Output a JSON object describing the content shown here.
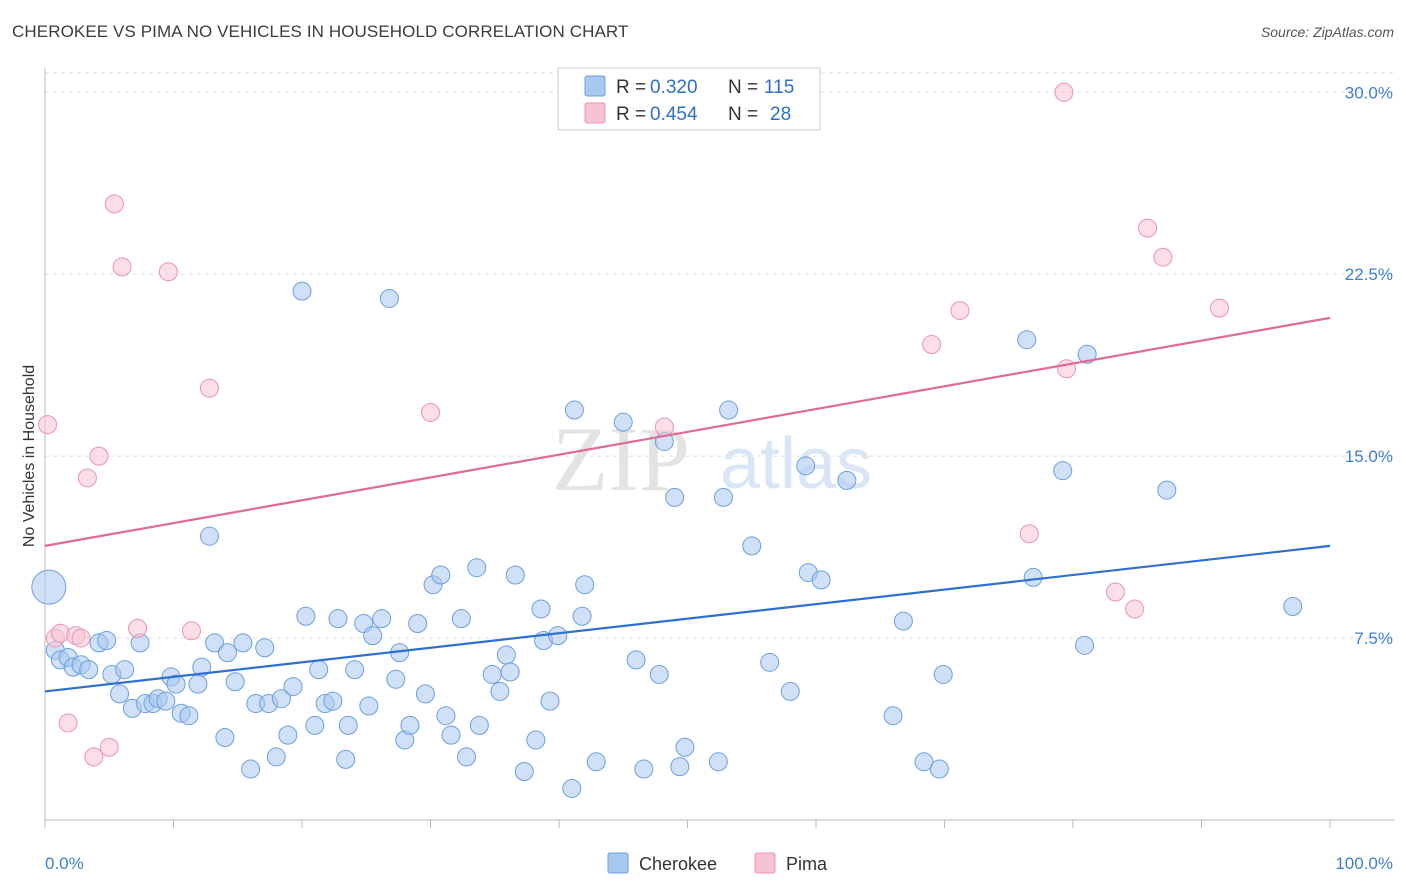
{
  "title": "CHEROKEE VS PIMA NO VEHICLES IN HOUSEHOLD CORRELATION CHART",
  "source": "Source: ZipAtlas.com",
  "watermark": {
    "zip": "ZIP",
    "atlas": "atlas"
  },
  "colors": {
    "cherokee_fill": "#a9c8f0",
    "cherokee_stroke": "#6a9fe0",
    "cherokee_line": "#2e6fd0",
    "pima_fill": "#f7c3d2",
    "pima_stroke": "#ec93ae",
    "pima_line": "#e06a92",
    "tick_label": "#3f7fd0",
    "grid": "#dddddd"
  },
  "legend": {
    "rows": [
      {
        "r_label": "R =",
        "r_value": "0.320",
        "n_label": "N =",
        "n_value": "115"
      },
      {
        "r_label": "R =",
        "r_value": "0.454",
        "n_label": "N =",
        "n_value": "28"
      }
    ]
  },
  "bottom_legend": [
    "Cherokee",
    "Pima"
  ],
  "chart_data": {
    "type": "scatter",
    "title": "CHEROKEE VS PIMA NO VEHICLES IN HOUSEHOLD CORRELATION CHART",
    "xlabel": "",
    "ylabel": "No Vehicles in Household",
    "xlim": [
      0,
      100
    ],
    "ylim": [
      0,
      31
    ],
    "x_tick_labels": [
      "0.0%",
      "100.0%"
    ],
    "y_ticks": [
      7.5,
      15.0,
      22.5,
      30.0
    ],
    "y_tick_labels": [
      "7.5%",
      "15.0%",
      "22.5%",
      "30.0%"
    ],
    "grid": true,
    "legend_position": "top-center",
    "series": [
      {
        "name": "Cherokee",
        "R": 0.32,
        "N": 115,
        "trend": {
          "x": [
            0,
            100
          ],
          "y": [
            5.3,
            11.3
          ]
        },
        "points": [
          [
            0.3,
            9.6,
            3
          ],
          [
            0.8,
            7.0,
            1
          ],
          [
            1.2,
            6.6,
            1
          ],
          [
            1.8,
            6.7,
            1
          ],
          [
            2.2,
            6.3,
            1
          ],
          [
            2.8,
            6.4,
            1
          ],
          [
            3.4,
            6.2,
            1
          ],
          [
            4.2,
            7.3,
            1
          ],
          [
            4.8,
            7.4,
            1
          ],
          [
            5.2,
            6.0,
            1
          ],
          [
            5.8,
            5.2,
            1
          ],
          [
            6.2,
            6.2,
            1
          ],
          [
            6.8,
            4.6,
            1
          ],
          [
            7.4,
            7.3,
            1
          ],
          [
            7.8,
            4.8,
            1
          ],
          [
            8.4,
            4.8,
            1
          ],
          [
            8.8,
            5.0,
            1
          ],
          [
            9.4,
            4.9,
            1
          ],
          [
            9.8,
            5.9,
            1
          ],
          [
            10.2,
            5.6,
            1
          ],
          [
            10.6,
            4.4,
            1
          ],
          [
            11.2,
            4.3,
            1
          ],
          [
            11.9,
            5.6,
            1
          ],
          [
            12.2,
            6.3,
            1
          ],
          [
            12.8,
            11.7,
            1
          ],
          [
            13.2,
            7.3,
            1
          ],
          [
            14.0,
            3.4,
            1
          ],
          [
            14.2,
            6.9,
            1
          ],
          [
            14.8,
            5.7,
            1
          ],
          [
            15.4,
            7.3,
            1
          ],
          [
            16.0,
            2.1,
            1
          ],
          [
            16.4,
            4.8,
            1
          ],
          [
            17.1,
            7.1,
            1
          ],
          [
            17.4,
            4.8,
            1
          ],
          [
            18.0,
            2.6,
            1
          ],
          [
            18.4,
            5.0,
            1
          ],
          [
            18.9,
            3.5,
            1
          ],
          [
            19.3,
            5.5,
            1
          ],
          [
            20.0,
            21.8,
            1
          ],
          [
            20.3,
            8.4,
            1
          ],
          [
            21.0,
            3.9,
            1
          ],
          [
            21.3,
            6.2,
            1
          ],
          [
            21.8,
            4.8,
            1
          ],
          [
            22.4,
            4.9,
            1
          ],
          [
            22.8,
            8.3,
            1
          ],
          [
            23.4,
            2.5,
            1
          ],
          [
            23.6,
            3.9,
            1
          ],
          [
            24.1,
            6.2,
            1
          ],
          [
            24.8,
            8.1,
            1
          ],
          [
            25.2,
            4.7,
            1
          ],
          [
            25.5,
            7.6,
            1
          ],
          [
            26.2,
            8.3,
            1
          ],
          [
            26.8,
            21.5,
            1
          ],
          [
            27.3,
            5.8,
            1
          ],
          [
            27.6,
            6.9,
            1
          ],
          [
            28.0,
            3.3,
            1
          ],
          [
            28.4,
            3.9,
            1
          ],
          [
            29.0,
            8.1,
            1
          ],
          [
            29.6,
            5.2,
            1
          ],
          [
            30.2,
            9.7,
            1
          ],
          [
            30.8,
            10.1,
            1
          ],
          [
            31.2,
            4.3,
            1
          ],
          [
            31.6,
            3.5,
            1
          ],
          [
            32.4,
            8.3,
            1
          ],
          [
            32.8,
            2.6,
            1
          ],
          [
            33.6,
            10.4,
            1
          ],
          [
            33.8,
            3.9,
            1
          ],
          [
            34.8,
            6.0,
            1
          ],
          [
            35.4,
            5.3,
            1
          ],
          [
            35.9,
            6.8,
            1
          ],
          [
            36.2,
            6.1,
            1
          ],
          [
            36.6,
            10.1,
            1
          ],
          [
            37.3,
            2.0,
            1
          ],
          [
            38.2,
            3.3,
            1
          ],
          [
            38.6,
            8.7,
            1
          ],
          [
            38.8,
            7.4,
            1
          ],
          [
            39.3,
            4.9,
            1
          ],
          [
            39.9,
            7.6,
            1
          ],
          [
            41.2,
            16.9,
            1
          ],
          [
            41.0,
            1.3,
            1
          ],
          [
            42.0,
            9.7,
            1
          ],
          [
            41.8,
            8.4,
            1
          ],
          [
            42.9,
            2.4,
            1
          ],
          [
            45.0,
            16.4,
            1
          ],
          [
            46.0,
            6.6,
            1
          ],
          [
            46.6,
            2.1,
            1
          ],
          [
            47.8,
            6.0,
            1
          ],
          [
            48.2,
            15.6,
            1
          ],
          [
            49.0,
            13.3,
            1
          ],
          [
            49.4,
            2.2,
            1
          ],
          [
            49.8,
            3.0,
            1
          ],
          [
            52.4,
            2.4,
            1
          ],
          [
            52.8,
            13.3,
            1
          ],
          [
            53.2,
            16.9,
            1
          ],
          [
            55.0,
            11.3,
            1
          ],
          [
            56.4,
            6.5,
            1
          ],
          [
            58.0,
            5.3,
            1
          ],
          [
            59.2,
            14.6,
            1
          ],
          [
            59.4,
            10.2,
            1
          ],
          [
            60.4,
            9.9,
            1
          ],
          [
            62.4,
            14.0,
            1
          ],
          [
            66.0,
            4.3,
            1
          ],
          [
            66.8,
            8.2,
            1
          ],
          [
            68.4,
            2.4,
            1
          ],
          [
            69.6,
            2.1,
            1
          ],
          [
            69.9,
            6.0,
            1
          ],
          [
            76.4,
            19.8,
            1
          ],
          [
            76.9,
            10.0,
            1
          ],
          [
            79.2,
            14.4,
            1
          ],
          [
            80.9,
            7.2,
            1
          ],
          [
            81.1,
            19.2,
            1
          ],
          [
            87.3,
            13.6,
            1
          ],
          [
            97.1,
            8.8,
            1
          ]
        ]
      },
      {
        "name": "Pima",
        "R": 0.454,
        "N": 28,
        "trend": {
          "x": [
            0,
            100
          ],
          "y": [
            11.3,
            20.7
          ]
        },
        "points": [
          [
            0.2,
            16.3,
            1
          ],
          [
            0.8,
            7.5,
            1
          ],
          [
            1.2,
            7.7,
            1
          ],
          [
            1.8,
            4.0,
            1
          ],
          [
            2.4,
            7.6,
            1
          ],
          [
            2.8,
            7.5,
            1
          ],
          [
            3.3,
            14.1,
            1
          ],
          [
            3.8,
            2.6,
            1
          ],
          [
            4.2,
            15.0,
            1
          ],
          [
            5.0,
            3.0,
            1
          ],
          [
            5.4,
            25.4,
            1
          ],
          [
            6.0,
            22.8,
            1
          ],
          [
            7.2,
            7.9,
            1
          ],
          [
            9.6,
            22.6,
            1
          ],
          [
            12.8,
            17.8,
            1
          ],
          [
            11.4,
            7.8,
            1
          ],
          [
            30.0,
            16.8,
            1
          ],
          [
            48.2,
            16.2,
            1
          ],
          [
            69.0,
            19.6,
            1
          ],
          [
            71.2,
            21.0,
            1
          ],
          [
            76.6,
            11.8,
            1
          ],
          [
            79.3,
            30.0,
            1
          ],
          [
            79.5,
            18.6,
            1
          ],
          [
            83.3,
            9.4,
            1
          ],
          [
            84.8,
            8.7,
            1
          ],
          [
            85.8,
            24.4,
            1
          ],
          [
            87.0,
            23.2,
            1
          ],
          [
            91.4,
            21.1,
            1
          ]
        ]
      }
    ]
  }
}
